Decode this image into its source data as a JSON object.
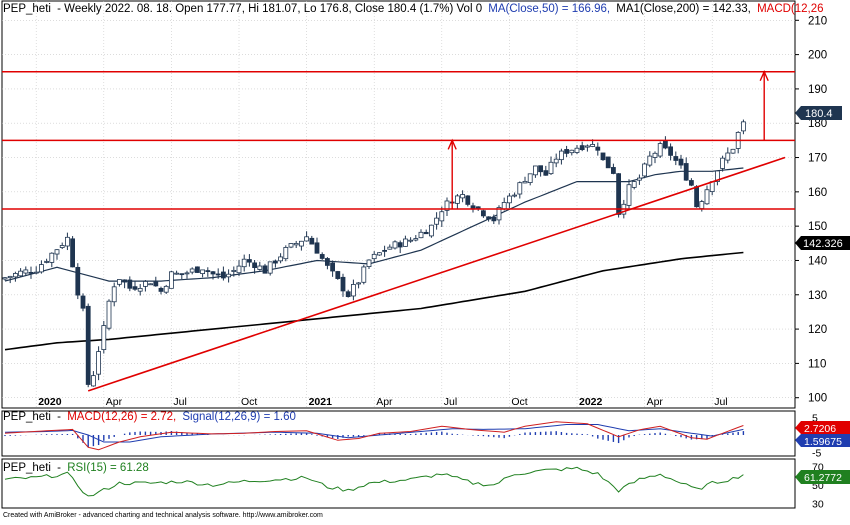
{
  "colors": {
    "candle_up": "#ffffff",
    "candle_down": "#1f3550",
    "candle_outline": "#1f3550",
    "ma50": "#1f3550",
    "ma200": "#000000",
    "annotation": "#e00000",
    "macd_line": "#d02020",
    "signal_line": "#1f3db0",
    "histogram": "#1f3db0",
    "rsi_line": "#208020",
    "badge_price": "#1f3550",
    "badge_ma200": "#000000",
    "badge_macd": "#e00000",
    "badge_signal": "#1f3db0",
    "badge_rsi": "#208020",
    "grid": "#c8c8c8"
  },
  "header": {
    "ticker": "PEP_heti",
    "info": "- Weekly 2022. 08. 18. Open 177.77, Hi 181.07, Lo 176.8, Close 180.4 (1.7%) Vol 0",
    "ma50_label": "MA(Close,50) = 166.96,",
    "ma200_label": "MA1(Close,200) = 142.33,",
    "macd_tag": "MACD(12,26"
  },
  "macd_header": {
    "ticker": "PEP_heti",
    "sep": "-",
    "macd_label": "MACD(12,26) = 2.72,",
    "signal_label": "Signal(12,26,9) = 1.60"
  },
  "rsi_header": {
    "ticker": "PEP_heti",
    "sep": "-",
    "rsi_label": "RSI(15) = 61.28"
  },
  "footer": "Created with AmiBroker - advanced charting and technical analysis software. http://www.amibroker.com",
  "badges": {
    "price": "180.4",
    "ma200": "142.326",
    "macd": "2.7206",
    "signal": "1.59675",
    "rsi": "61.2772"
  },
  "chart_data": [
    {
      "type": "candlestick",
      "timeframe": "weekly",
      "ylim": [
        97,
        213
      ],
      "y_ticks": [
        100,
        110,
        120,
        130,
        140,
        150,
        160,
        170,
        180,
        190,
        200,
        210
      ],
      "x_tick_labels": [
        "2020",
        "Apr",
        "Jul",
        "Oct",
        "2021",
        "Apr",
        "Jul",
        "Oct",
        "2022",
        "Apr",
        "Jul"
      ],
      "x_tick_weeks": [
        6,
        19,
        32,
        45,
        58,
        71,
        84,
        97,
        110,
        123,
        136
      ],
      "grid": true,
      "close_path": [
        [
          0,
          135
        ],
        [
          3,
          136.5
        ],
        [
          6,
          137.5
        ],
        [
          9,
          142
        ],
        [
          12,
          146.5
        ],
        [
          13,
          139
        ],
        [
          14,
          131
        ],
        [
          15,
          125
        ],
        [
          16,
          104
        ],
        [
          17,
          107
        ],
        [
          18,
          114
        ],
        [
          19,
          120
        ],
        [
          20,
          128
        ],
        [
          21,
          133
        ],
        [
          22,
          135
        ],
        [
          24,
          132
        ],
        [
          26,
          133
        ],
        [
          28,
          134
        ],
        [
          30,
          131
        ],
        [
          32,
          136
        ],
        [
          34,
          136
        ],
        [
          36,
          137
        ],
        [
          38,
          138
        ],
        [
          40,
          136
        ],
        [
          42,
          135
        ],
        [
          44,
          137
        ],
        [
          46,
          140
        ],
        [
          48,
          139
        ],
        [
          50,
          137
        ],
        [
          52,
          140
        ],
        [
          54,
          143
        ],
        [
          56,
          145
        ],
        [
          58,
          147
        ],
        [
          60,
          143
        ],
        [
          62,
          138
        ],
        [
          64,
          134
        ],
        [
          66,
          130
        ],
        [
          68,
          134
        ],
        [
          70,
          140
        ],
        [
          72,
          142
        ],
        [
          74,
          144
        ],
        [
          76,
          145
        ],
        [
          78,
          146
        ],
        [
          80,
          148
        ],
        [
          82,
          150
        ],
        [
          84,
          155
        ],
        [
          86,
          158
        ],
        [
          88,
          159
        ],
        [
          90,
          156
        ],
        [
          92,
          154
        ],
        [
          94,
          152
        ],
        [
          96,
          157
        ],
        [
          98,
          160
        ],
        [
          100,
          164
        ],
        [
          102,
          167
        ],
        [
          104,
          165
        ],
        [
          106,
          170
        ],
        [
          108,
          172
        ],
        [
          110,
          173
        ],
        [
          112,
          174
        ],
        [
          114,
          173
        ],
        [
          115,
          169
        ],
        [
          117,
          166
        ],
        [
          118,
          154
        ],
        [
          120,
          161
        ],
        [
          122,
          164
        ],
        [
          124,
          170
        ],
        [
          126,
          173
        ],
        [
          128,
          171
        ],
        [
          130,
          167
        ],
        [
          132,
          162
        ],
        [
          133,
          156
        ],
        [
          134,
          158
        ],
        [
          136,
          164
        ],
        [
          138,
          169
        ],
        [
          140,
          173
        ],
        [
          141,
          177
        ],
        [
          142,
          180.4
        ]
      ],
      "last_candle": {
        "date": "2022. 08. 18.",
        "open": 177.77,
        "high": 181.07,
        "low": 176.8,
        "close": 180.4,
        "change_pct": 1.7,
        "volume": 0
      },
      "series": [
        {
          "name": "MA(Close,50)",
          "last": 166.96,
          "path": [
            [
              0,
              134
            ],
            [
              10,
              138
            ],
            [
              20,
              134
            ],
            [
              30,
              134
            ],
            [
              40,
              135
            ],
            [
              50,
              137
            ],
            [
              60,
              140
            ],
            [
              70,
              139
            ],
            [
              80,
              143
            ],
            [
              90,
              150
            ],
            [
              100,
              157
            ],
            [
              110,
              163
            ],
            [
              120,
              163
            ],
            [
              125,
              165
            ],
            [
              130,
              166
            ],
            [
              136,
              166
            ],
            [
              142,
              166.96
            ]
          ]
        },
        {
          "name": "MA1(Close,200)",
          "last": 142.33,
          "path": [
            [
              0,
              114
            ],
            [
              10,
              116
            ],
            [
              20,
              117
            ],
            [
              40,
              120
            ],
            [
              60,
              123
            ],
            [
              80,
              126
            ],
            [
              100,
              131
            ],
            [
              115,
              137
            ],
            [
              130,
              140.5
            ],
            [
              142,
              142.33
            ]
          ]
        }
      ],
      "annotations": {
        "horizontal_lines": [
          195,
          175,
          155
        ],
        "trendline": [
          [
            16,
            102
          ],
          [
            150,
            170
          ]
        ],
        "arrows": [
          {
            "x_week": 86,
            "from": 155,
            "to": 175
          },
          {
            "x_week": 146,
            "from": 175,
            "to": 195
          }
        ]
      }
    },
    {
      "type": "line",
      "title": "MACD(12,26)",
      "ylim": [
        -6,
        6
      ],
      "y_ticks": [
        5,
        0,
        -5
      ],
      "series": [
        {
          "name": "MACD(12,26)",
          "last": 2.72,
          "path": [
            [
              0,
              0.5
            ],
            [
              8,
              1.2
            ],
            [
              13,
              1.6
            ],
            [
              16,
              -3.5
            ],
            [
              18,
              -4.2
            ],
            [
              22,
              -2
            ],
            [
              26,
              -0.5
            ],
            [
              32,
              0.8
            ],
            [
              40,
              0.3
            ],
            [
              46,
              0.5
            ],
            [
              52,
              1
            ],
            [
              58,
              1.2
            ],
            [
              64,
              -1.5
            ],
            [
              68,
              -1
            ],
            [
              72,
              0.5
            ],
            [
              78,
              1
            ],
            [
              84,
              2.5
            ],
            [
              90,
              1.5
            ],
            [
              96,
              0.8
            ],
            [
              100,
              2.5
            ],
            [
              106,
              3.8
            ],
            [
              112,
              3.2
            ],
            [
              118,
              -0.5
            ],
            [
              122,
              1.5
            ],
            [
              126,
              2.5
            ],
            [
              132,
              -0.8
            ],
            [
              135,
              -1.2
            ],
            [
              138,
              0.5
            ],
            [
              142,
              2.72
            ]
          ]
        },
        {
          "name": "Signal(12,26,9)",
          "last": 1.6,
          "path": [
            [
              0,
              0.8
            ],
            [
              8,
              1
            ],
            [
              13,
              1.3
            ],
            [
              16,
              0
            ],
            [
              19,
              -2
            ],
            [
              24,
              -2
            ],
            [
              30,
              -0.5
            ],
            [
              40,
              0.3
            ],
            [
              52,
              0.8
            ],
            [
              60,
              0.5
            ],
            [
              66,
              -0.8
            ],
            [
              72,
              0
            ],
            [
              80,
              1
            ],
            [
              86,
              1.8
            ],
            [
              92,
              1.6
            ],
            [
              100,
              1.8
            ],
            [
              108,
              3
            ],
            [
              114,
              3
            ],
            [
              120,
              1.2
            ],
            [
              126,
              1.8
            ],
            [
              132,
              0.5
            ],
            [
              136,
              -0.3
            ],
            [
              142,
              1.6
            ]
          ]
        }
      ]
    },
    {
      "type": "line",
      "title": "RSI(15)",
      "ylim": [
        25,
        75
      ],
      "y_ticks": [
        70,
        50,
        30
      ],
      "series": [
        {
          "name": "RSI(15)",
          "last": 61.28,
          "path": [
            [
              0,
              56
            ],
            [
              6,
              58
            ],
            [
              12,
              62
            ],
            [
              14,
              50
            ],
            [
              16,
              37
            ],
            [
              18,
              42
            ],
            [
              22,
              52
            ],
            [
              28,
              52
            ],
            [
              34,
              54
            ],
            [
              40,
              50
            ],
            [
              46,
              54
            ],
            [
              52,
              56
            ],
            [
              58,
              58
            ],
            [
              62,
              48
            ],
            [
              66,
              44
            ],
            [
              70,
              52
            ],
            [
              78,
              56
            ],
            [
              84,
              62
            ],
            [
              90,
              52
            ],
            [
              94,
              50
            ],
            [
              98,
              62
            ],
            [
              104,
              66
            ],
            [
              110,
              68
            ],
            [
              114,
              62
            ],
            [
              118,
              44
            ],
            [
              122,
              56
            ],
            [
              126,
              62
            ],
            [
              130,
              52
            ],
            [
              133,
              45
            ],
            [
              136,
              52
            ],
            [
              140,
              57
            ],
            [
              142,
              61.28
            ]
          ]
        }
      ]
    }
  ]
}
